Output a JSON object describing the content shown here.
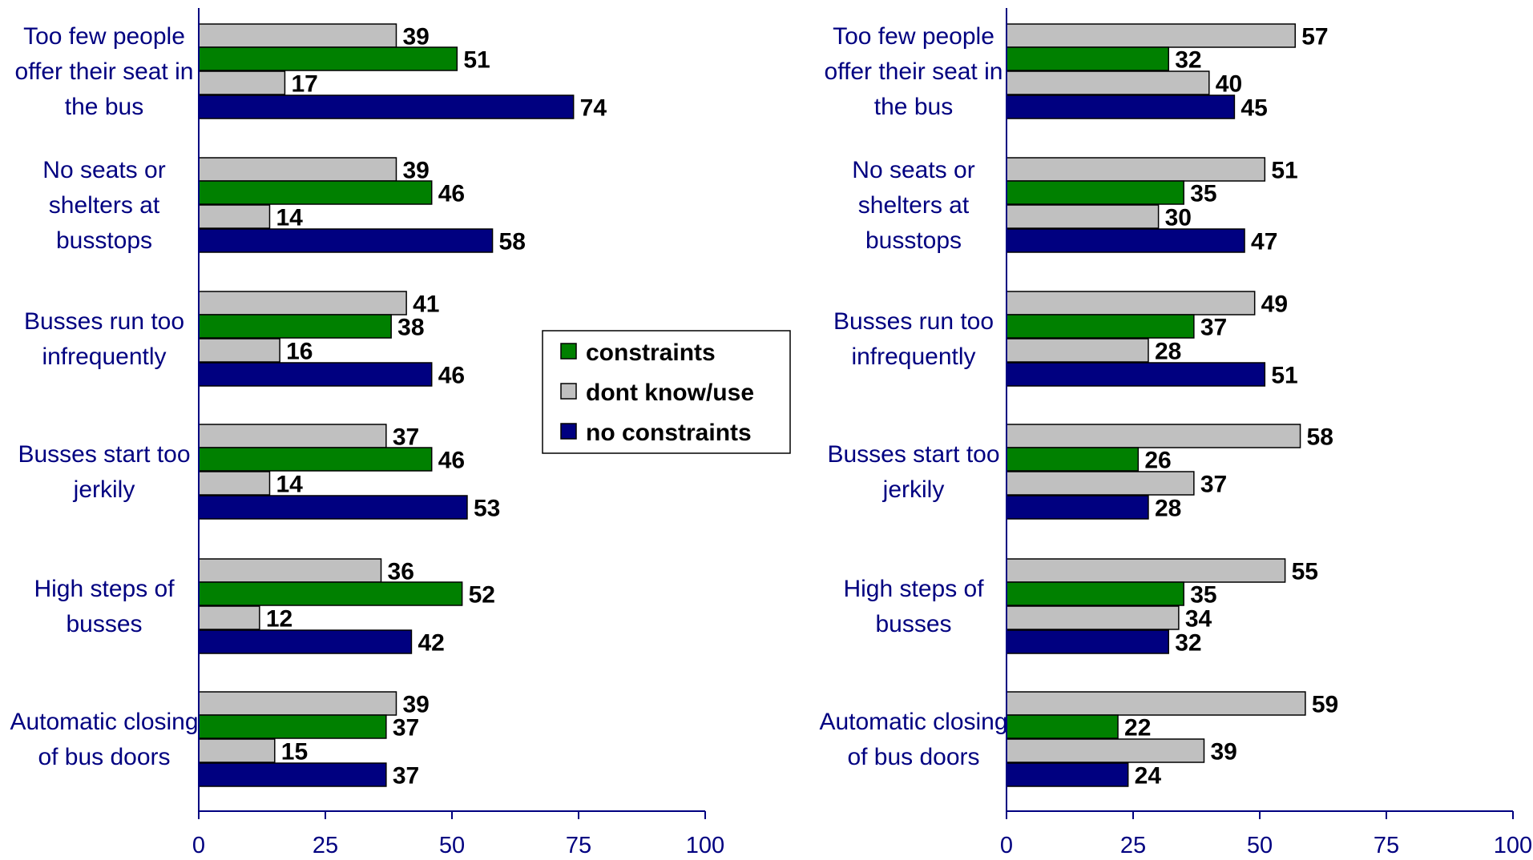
{
  "chart_data": [
    {
      "type": "bar",
      "orientation": "horizontal",
      "title": "",
      "xlabel": "",
      "ylabel": "",
      "xlim": [
        0,
        100
      ],
      "xticks": [
        "0",
        "25",
        "50",
        "75",
        "100"
      ],
      "categories": [
        [
          "Too few people",
          "offer their seat in",
          "the bus"
        ],
        [
          "No seats or",
          "shelters at",
          "busstops"
        ],
        [
          "Busses run too",
          "infrequently"
        ],
        [
          "Busses start too",
          "jerkily"
        ],
        [
          "High steps of",
          "busses"
        ],
        [
          "Automatic closing",
          "of bus doors"
        ]
      ],
      "series": [
        {
          "name": "dont know/use",
          "color": "#c0c0c0",
          "values": [
            39,
            39,
            41,
            37,
            36,
            39
          ]
        },
        {
          "name": "constraints",
          "color": "#008000",
          "values": [
            51,
            46,
            38,
            46,
            52,
            37
          ]
        },
        {
          "name": "dont know/use",
          "color": "#c0c0c0",
          "values": [
            17,
            14,
            16,
            14,
            12,
            15
          ]
        },
        {
          "name": "no constraints",
          "color": "#000080",
          "values": [
            74,
            58,
            46,
            53,
            42,
            37
          ]
        }
      ]
    },
    {
      "type": "bar",
      "orientation": "horizontal",
      "title": "",
      "xlabel": "",
      "ylabel": "",
      "xlim": [
        0,
        100
      ],
      "xticks": [
        "0",
        "25",
        "50",
        "75",
        "100"
      ],
      "categories": [
        [
          "Too few people",
          "offer their seat in",
          "the bus"
        ],
        [
          "No seats or",
          "shelters at",
          "busstops"
        ],
        [
          "Busses run too",
          "infrequently"
        ],
        [
          "Busses start too",
          "jerkily"
        ],
        [
          "High steps of",
          "busses"
        ],
        [
          "Automatic closing",
          "of bus doors"
        ]
      ],
      "series": [
        {
          "name": "dont know/use",
          "color": "#c0c0c0",
          "values": [
            57,
            51,
            49,
            58,
            55,
            59
          ]
        },
        {
          "name": "constraints",
          "color": "#008000",
          "values": [
            32,
            35,
            37,
            26,
            35,
            22
          ]
        },
        {
          "name": "dont know/use",
          "color": "#c0c0c0",
          "values": [
            40,
            30,
            28,
            37,
            34,
            39
          ]
        },
        {
          "name": "no constraints",
          "color": "#000080",
          "values": [
            45,
            47,
            51,
            28,
            32,
            24
          ]
        }
      ]
    }
  ],
  "legend": {
    "placement": "center",
    "items": [
      {
        "label": "constraints",
        "color": "#008000"
      },
      {
        "label": "dont know/use",
        "color": "#c0c0c0"
      },
      {
        "label": "no constraints",
        "color": "#000080"
      }
    ]
  },
  "colors": {
    "axis": "#000080",
    "bar_outline": "#000000"
  }
}
